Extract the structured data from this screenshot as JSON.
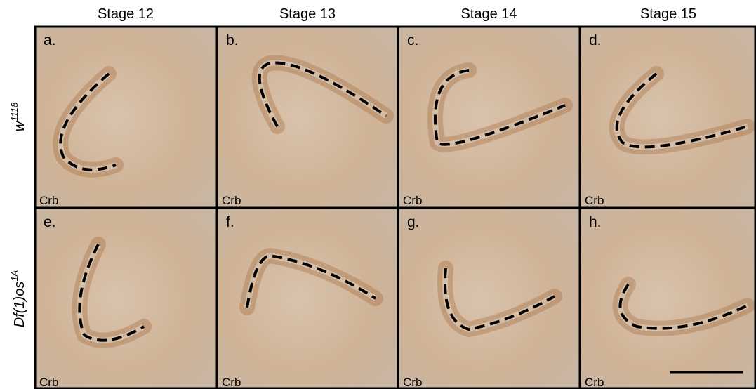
{
  "columns": [
    "Stage 12",
    "Stage 13",
    "Stage 14",
    "Stage 15"
  ],
  "rows": [
    {
      "label": "w",
      "superscript": "1118"
    },
    {
      "label": "Df(1)os",
      "superscript": "1A"
    }
  ],
  "panels": [
    {
      "letter": "a.",
      "stain": "Crb"
    },
    {
      "letter": "b.",
      "stain": "Crb"
    },
    {
      "letter": "c.",
      "stain": "Crb"
    },
    {
      "letter": "d.",
      "stain": "Crb"
    },
    {
      "letter": "e.",
      "stain": "Crb"
    },
    {
      "letter": "f.",
      "stain": "Crb"
    },
    {
      "letter": "g.",
      "stain": "Crb"
    },
    {
      "letter": "h.",
      "stain": "Crb"
    }
  ]
}
